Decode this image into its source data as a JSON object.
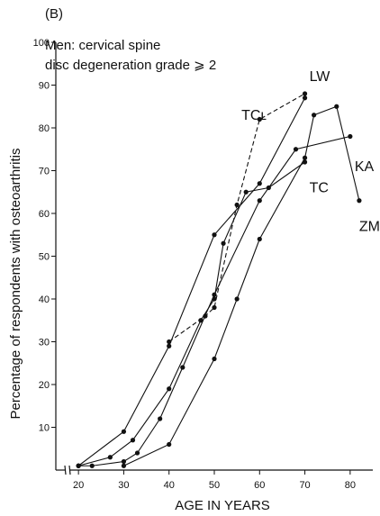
{
  "chart_data": {
    "type": "line",
    "panel_label": "(B)",
    "title_lines": [
      "Men: cervical spine",
      "disc degeneration grade ⩾ 2"
    ],
    "xlabel": "AGE IN YEARS",
    "ylabel": "Percentage of respondents with osteoarthritis",
    "xlim": [
      15,
      85
    ],
    "ylim": [
      0,
      100
    ],
    "x_ticks": [
      20,
      30,
      40,
      50,
      60,
      70,
      80
    ],
    "y_ticks": [
      10,
      20,
      30,
      40,
      50,
      60,
      70,
      80,
      90,
      100
    ],
    "x_axis_break": true,
    "grid": false,
    "series": [
      {
        "name": "LW",
        "style": "solid",
        "label_x": 71,
        "label_y": 92,
        "x": [
          20,
          30,
          40,
          50,
          60,
          70
        ],
        "y": [
          1,
          9,
          29,
          55,
          67,
          87
        ]
      },
      {
        "name": "TCʟ",
        "style": "dashed",
        "label_x": 56,
        "label_y": 83,
        "x": [
          40,
          48,
          50,
          55,
          60,
          70
        ],
        "y": [
          30,
          36,
          38,
          62,
          82,
          88
        ]
      },
      {
        "name": "KA",
        "style": "solid",
        "label_x": 81,
        "label_y": 71,
        "x": [
          20,
          23,
          30,
          33,
          38,
          43,
          50,
          60,
          68,
          80
        ],
        "y": [
          1,
          1,
          2,
          4,
          12,
          24,
          41,
          63,
          75,
          78
        ]
      },
      {
        "name": "TC",
        "style": "solid",
        "label_x": 71,
        "label_y": 66,
        "x": [
          20,
          27,
          32,
          40,
          47,
          50,
          52,
          57,
          62,
          70
        ],
        "y": [
          1,
          3,
          7,
          19,
          35,
          40,
          53,
          65,
          66,
          72
        ]
      },
      {
        "name": "ZM",
        "style": "solid",
        "label_x": 82,
        "label_y": 57,
        "x": [
          30,
          40,
          50,
          55,
          60,
          70,
          72,
          77,
          82
        ],
        "y": [
          1,
          6,
          26,
          40,
          54,
          73,
          83,
          85,
          63
        ]
      }
    ]
  }
}
